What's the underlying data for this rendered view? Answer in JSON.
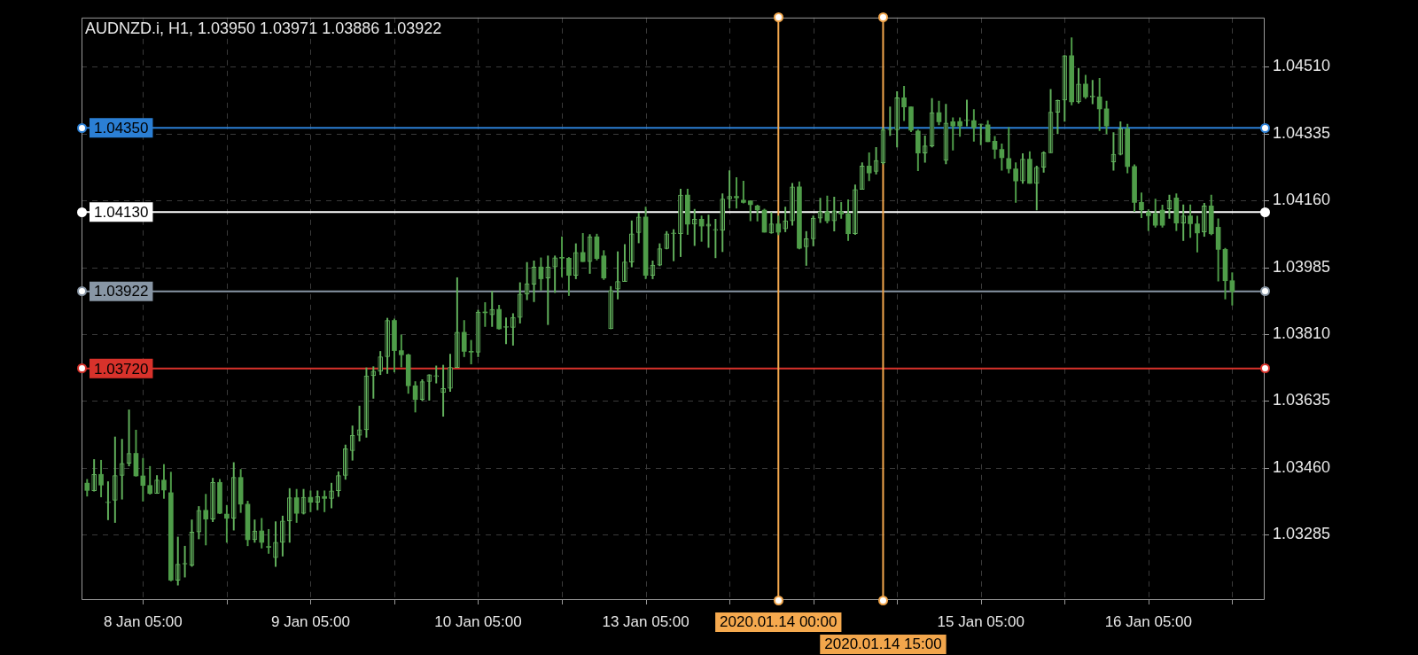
{
  "chart_data": {
    "type": "candlestick",
    "title": "AUDNZD.i, H1, 1.03950 1.03971 1.03886 1.03922",
    "categories": [
      null,
      null,
      null,
      null,
      null,
      null,
      null,
      null,
      "8 Jan 05:00",
      null,
      null,
      null,
      null,
      null,
      null,
      null,
      null,
      null,
      null,
      null,
      null,
      null,
      null,
      null,
      null,
      null,
      null,
      null,
      null,
      null,
      null,
      null,
      "9 Jan 05:00",
      null,
      null,
      null,
      null,
      null,
      null,
      null,
      null,
      null,
      null,
      null,
      null,
      null,
      null,
      null,
      null,
      null,
      null,
      null,
      null,
      null,
      null,
      null,
      "10 Jan 05:00",
      null,
      null,
      null,
      null,
      null,
      null,
      null,
      null,
      null,
      null,
      null,
      null,
      null,
      null,
      null,
      null,
      null,
      null,
      null,
      null,
      null,
      null,
      null,
      "13 Jan 05:00",
      null,
      null,
      null,
      null,
      null,
      null,
      null,
      null,
      null,
      null,
      null,
      null,
      null,
      null,
      null,
      null,
      null,
      null,
      "2020.01.14 00:00",
      null,
      null,
      null,
      null,
      null,
      null,
      null,
      null,
      null,
      null,
      null,
      null,
      null,
      null,
      "2020.01.14 15:00",
      null,
      null,
      null,
      null,
      null,
      null,
      null,
      null,
      null,
      null,
      null,
      null,
      null,
      "15 Jan 05:00",
      null,
      null,
      null,
      null,
      null,
      null,
      null,
      null,
      null,
      null,
      null,
      null,
      null,
      null,
      null,
      null,
      null,
      null,
      null,
      null,
      null,
      null,
      null,
      "16 Jan 05:00",
      null,
      null,
      null,
      null,
      null,
      null,
      null,
      null,
      null,
      null,
      null,
      null
    ],
    "ohlc": [
      [
        1.0342,
        1.0343,
        1.03386,
        1.03401
      ],
      [
        1.034,
        1.03482,
        1.03399,
        1.03443
      ],
      [
        1.03443,
        1.0348,
        1.03384,
        1.03415
      ],
      [
        1.03369,
        1.03424,
        1.03324,
        1.03369
      ],
      [
        1.03375,
        1.03541,
        1.03317,
        1.0344
      ],
      [
        1.0344,
        1.03535,
        1.03378,
        1.03472
      ],
      [
        1.03472,
        1.03612,
        1.03465,
        1.03498
      ],
      [
        1.03498,
        1.03559,
        1.03438,
        1.03439
      ],
      [
        1.03439,
        1.03485,
        1.03373,
        1.03414
      ],
      [
        1.03414,
        1.03464,
        1.03391,
        1.03393
      ],
      [
        1.03393,
        1.0344,
        1.03393,
        1.03428
      ],
      [
        1.03428,
        1.03469,
        1.0338,
        1.03402
      ],
      [
        1.03395,
        1.03449,
        1.03164,
        1.03166
      ],
      [
        1.03166,
        1.03279,
        1.03153,
        1.03208
      ],
      [
        1.03208,
        1.03255,
        1.03174,
        1.03208
      ],
      [
        1.03205,
        1.03324,
        1.03202,
        1.03292
      ],
      [
        1.03292,
        1.03359,
        1.03274,
        1.03349
      ],
      [
        1.03349,
        1.03391,
        1.03258,
        1.03326
      ],
      [
        1.03326,
        1.03433,
        1.03319,
        1.03422
      ],
      [
        1.03422,
        1.0343,
        1.0334,
        1.03341
      ],
      [
        1.03339,
        1.03362,
        1.03265,
        1.03328
      ],
      [
        1.03328,
        1.03474,
        1.03297,
        1.03435
      ],
      [
        1.03435,
        1.03456,
        1.03343,
        1.03365
      ],
      [
        1.03365,
        1.03373,
        1.03256,
        1.03272
      ],
      [
        1.03272,
        1.03324,
        1.03265,
        1.03295
      ],
      [
        1.03295,
        1.03328,
        1.0325,
        1.03265
      ],
      [
        1.03254,
        1.03299,
        1.03236,
        1.03252
      ],
      [
        1.03225,
        1.03319,
        1.03202,
        1.03265
      ],
      [
        1.03265,
        1.03334,
        1.03229,
        1.03321
      ],
      [
        1.03321,
        1.03406,
        1.03265,
        1.03382
      ],
      [
        1.03382,
        1.03404,
        1.03317,
        1.03341
      ],
      [
        1.03341,
        1.03404,
        1.03339,
        1.03383
      ],
      [
        1.03383,
        1.034,
        1.03345,
        1.0337
      ],
      [
        1.0337,
        1.034,
        1.0335,
        1.03385
      ],
      [
        1.03385,
        1.034,
        1.03345,
        1.0338
      ],
      [
        1.0338,
        1.0342,
        1.03355,
        1.034
      ],
      [
        1.034,
        1.0345,
        1.03385,
        1.0344
      ],
      [
        1.0344,
        1.0352,
        1.0343,
        1.0351
      ],
      [
        1.03505,
        1.0357,
        1.0348,
        1.03545
      ],
      [
        1.03545,
        1.03622,
        1.0353,
        1.0356
      ],
      [
        1.0356,
        1.03722,
        1.0354,
        1.03701
      ],
      [
        1.03701,
        1.03725,
        1.03642,
        1.03713
      ],
      [
        1.03713,
        1.03765,
        1.03704,
        1.03751
      ],
      [
        1.03751,
        1.03852,
        1.03707,
        1.03846
      ],
      [
        1.03846,
        1.0385,
        1.03711,
        1.03767
      ],
      [
        1.03767,
        1.03808,
        1.03724,
        1.03756
      ],
      [
        1.03756,
        1.03758,
        1.03655,
        1.03675
      ],
      [
        1.03675,
        1.03686,
        1.03606,
        1.03639
      ],
      [
        1.03639,
        1.03691,
        1.03636,
        1.03686
      ],
      [
        1.03686,
        1.03704,
        1.03637,
        1.03704
      ],
      [
        1.03699,
        1.03727,
        1.03682,
        1.037
      ],
      [
        1.03657,
        1.03729,
        1.03595,
        1.03668
      ],
      [
        1.03668,
        1.03758,
        1.0366,
        1.03723
      ],
      [
        1.03723,
        1.03958,
        1.03723,
        1.03815
      ],
      [
        1.03815,
        1.03846,
        1.03751,
        1.03765
      ],
      [
        1.03765,
        1.03794,
        1.03732,
        1.03763
      ],
      [
        1.03763,
        1.03873,
        1.03751,
        1.03868
      ],
      [
        1.03868,
        1.03893,
        1.0383,
        1.03866
      ],
      [
        1.03861,
        1.03922,
        1.0383,
        1.03875
      ],
      [
        1.03875,
        1.03886,
        1.03823,
        1.03824
      ],
      [
        1.03828,
        1.03853,
        1.03785,
        1.03828
      ],
      [
        1.03828,
        1.03864,
        1.03781,
        1.03854
      ],
      [
        1.03854,
        1.03945,
        1.03839,
        1.03915
      ],
      [
        1.03915,
        1.03998,
        1.039,
        1.03942
      ],
      [
        1.03941,
        1.04002,
        1.03895,
        1.03986
      ],
      [
        1.03986,
        1.0401,
        1.03925,
        1.03955
      ],
      [
        1.03957,
        1.04015,
        1.03835,
        1.03986
      ],
      [
        1.03986,
        1.04015,
        1.03919,
        1.0401
      ],
      [
        1.0401,
        1.04065,
        1.0396,
        1.04009
      ],
      [
        1.04009,
        1.04011,
        1.03911,
        1.03964
      ],
      [
        1.03964,
        1.04047,
        1.03955,
        1.04024
      ],
      [
        1.04024,
        1.04074,
        1.04,
        1.04
      ],
      [
        1.04,
        1.04071,
        1.03969,
        1.04065
      ],
      [
        1.04065,
        1.04072,
        1.04004,
        1.04008
      ],
      [
        1.04015,
        1.04029,
        1.03953,
        1.03957
      ],
      [
        1.03824,
        1.03935,
        1.03824,
        1.03924
      ],
      [
        1.03928,
        1.04026,
        1.03902,
        1.03948
      ],
      [
        1.03948,
        1.04045,
        1.03948,
        1.03999
      ],
      [
        1.03999,
        1.04107,
        1.03986,
        1.04073
      ],
      [
        1.04076,
        1.04127,
        1.04049,
        1.04117
      ],
      [
        1.04117,
        1.04143,
        1.03955,
        1.03964
      ],
      [
        1.03964,
        1.04002,
        1.03955,
        1.03991
      ],
      [
        1.03991,
        1.04047,
        1.03989,
        1.04034
      ],
      [
        1.04034,
        1.04079,
        1.04033,
        1.04073
      ],
      [
        1.04073,
        1.04084,
        1.04002,
        1.04073
      ],
      [
        1.04073,
        1.0419,
        1.04013,
        1.04174
      ],
      [
        1.04174,
        1.0419,
        1.04071,
        1.04098
      ],
      [
        1.04098,
        1.04137,
        1.04042,
        1.04111
      ],
      [
        1.04111,
        1.0412,
        1.04053,
        1.04093
      ],
      [
        1.04093,
        1.04122,
        1.04037,
        1.04098
      ],
      [
        1.04082,
        1.04111,
        1.0401,
        1.04082
      ],
      [
        1.04082,
        1.04178,
        1.04026,
        1.04164
      ],
      [
        1.04164,
        1.04238,
        1.0414,
        1.04171
      ],
      [
        1.04171,
        1.0422,
        1.0414,
        1.04167
      ],
      [
        1.04161,
        1.04211,
        1.04153,
        1.04155
      ],
      [
        1.04159,
        1.0416,
        1.04107,
        1.04149
      ],
      [
        1.04146,
        1.04148,
        1.04106,
        1.04135
      ],
      [
        1.04135,
        1.04138,
        1.04077,
        1.04077
      ],
      [
        1.04075,
        1.04129,
        1.04074,
        1.04099
      ],
      [
        1.04099,
        1.0412,
        1.0407,
        1.04077
      ],
      [
        1.04086,
        1.04143,
        1.04078,
        1.04107
      ],
      [
        1.04107,
        1.04205,
        1.04095,
        1.04196
      ],
      [
        1.04196,
        1.04209,
        1.04033,
        1.04035
      ],
      [
        1.04039,
        1.04079,
        1.0399,
        1.0406
      ],
      [
        1.0406,
        1.0412,
        1.04041,
        1.04114
      ],
      [
        1.04114,
        1.04166,
        1.04102,
        1.04131
      ],
      [
        1.04131,
        1.04172,
        1.04101,
        1.04107
      ],
      [
        1.04107,
        1.04169,
        1.0408,
        1.04133
      ],
      [
        1.04131,
        1.04155,
        1.04113,
        1.04125
      ],
      [
        1.04125,
        1.04162,
        1.04055,
        1.04073
      ],
      [
        1.04073,
        1.04201,
        1.04071,
        1.04189
      ],
      [
        1.04189,
        1.04259,
        1.04189,
        1.0425
      ],
      [
        1.0425,
        1.04285,
        1.04212,
        1.04232
      ],
      [
        1.04236,
        1.04299,
        1.04229,
        1.04265
      ],
      [
        1.04259,
        1.0435,
        1.04255,
        1.04345
      ],
      [
        1.04345,
        1.04405,
        1.0433,
        1.04345
      ],
      [
        1.04345,
        1.04445,
        1.043,
        1.04429
      ],
      [
        1.04429,
        1.04459,
        1.04369,
        1.04405
      ],
      [
        1.04405,
        1.04405,
        1.0434,
        1.04344
      ],
      [
        1.04342,
        1.04345,
        1.04238,
        1.04284
      ],
      [
        1.04284,
        1.04329,
        1.0426,
        1.04303
      ],
      [
        1.04303,
        1.04427,
        1.043,
        1.0439
      ],
      [
        1.0439,
        1.0442,
        1.04358,
        1.04366
      ],
      [
        1.04265,
        1.04412,
        1.04256,
        1.04363
      ],
      [
        1.04366,
        1.04377,
        1.04292,
        1.04355
      ],
      [
        1.04367,
        1.04377,
        1.04328,
        1.04355
      ],
      [
        1.04369,
        1.04423,
        1.04355,
        1.04369
      ],
      [
        1.04369,
        1.04398,
        1.04315,
        1.04351
      ],
      [
        1.04358,
        1.0436,
        1.04306,
        1.04358
      ],
      [
        1.04358,
        1.04369,
        1.04314,
        1.04314
      ],
      [
        1.04315,
        1.04328,
        1.0427,
        1.04294
      ],
      [
        1.04294,
        1.04308,
        1.04239,
        1.04272
      ],
      [
        1.0427,
        1.04351,
        1.04232,
        1.04243
      ],
      [
        1.04243,
        1.04259,
        1.04155,
        1.04211
      ],
      [
        1.04211,
        1.04283,
        1.04205,
        1.04268
      ],
      [
        1.04268,
        1.04288,
        1.04205,
        1.04205
      ],
      [
        1.04205,
        1.0425,
        1.04135,
        1.04247
      ],
      [
        1.04247,
        1.04288,
        1.04234,
        1.04285
      ],
      [
        1.04285,
        1.04451,
        1.04285,
        1.04391
      ],
      [
        1.04391,
        1.04423,
        1.04335,
        1.04422
      ],
      [
        1.04423,
        1.0454,
        1.04367,
        1.04539
      ],
      [
        1.04539,
        1.04586,
        1.0441,
        1.04418
      ],
      [
        1.04418,
        1.04506,
        1.04415,
        1.04465
      ],
      [
        1.04465,
        1.04488,
        1.04427,
        1.04431
      ],
      [
        1.04431,
        1.04475,
        1.04413,
        1.04431
      ],
      [
        1.04431,
        1.0448,
        1.04343,
        1.044
      ],
      [
        1.044,
        1.0442,
        1.04335,
        1.04355
      ],
      [
        1.04261,
        1.04338,
        1.04239,
        1.04281
      ],
      [
        1.04281,
        1.04366,
        1.04279,
        1.04348
      ],
      [
        1.04348,
        1.0436,
        1.04232,
        1.04249
      ],
      [
        1.04249,
        1.04254,
        1.04131,
        1.04155
      ],
      [
        1.04155,
        1.0418,
        1.04115,
        1.04135
      ],
      [
        1.04129,
        1.04136,
        1.04081,
        1.0412
      ],
      [
        1.04126,
        1.04164,
        1.0409,
        1.04095
      ],
      [
        1.04135,
        1.04148,
        1.0409,
        1.04095
      ],
      [
        1.04138,
        1.04174,
        1.04113,
        1.0416
      ],
      [
        1.04167,
        1.04178,
        1.04081,
        1.04101
      ],
      [
        1.04101,
        1.04149,
        1.04055,
        1.0412
      ],
      [
        1.0412,
        1.04149,
        1.04063,
        1.04099
      ],
      [
        1.04099,
        1.04119,
        1.04025,
        1.04075
      ],
      [
        1.04078,
        1.04153,
        1.04066,
        1.04146
      ],
      [
        1.04146,
        1.04174,
        1.0407,
        1.04073
      ],
      [
        1.0409,
        1.04112,
        1.03949,
        1.04032
      ],
      [
        1.04032,
        1.04035,
        1.03902,
        1.0395
      ],
      [
        1.0395,
        1.03971,
        1.03886,
        1.03922
      ]
    ],
    "colors": [
      "#4f9d49",
      "#62b15c",
      "#4f9d49",
      "#62b15c",
      "#62b15c",
      "#62b15c",
      "#62b15c",
      "#4f9d49",
      "#4f9d49",
      "#4f9d49",
      "#62b15c",
      "#4f9d49",
      "#4f9d49",
      "#62b15c",
      "#62b15c",
      "#62b15c",
      "#62b15c",
      "#4f9d49",
      "#62b15c",
      "#4f9d49",
      "#4f9d49",
      "#62b15c",
      "#4f9d49",
      "#4f9d49",
      "#62b15c",
      "#4f9d49",
      "#4f9d49",
      "#62b15c",
      "#62b15c",
      "#62b15c",
      "#4f9d49",
      "#62b15c",
      "#4f9d49",
      "#62b15c",
      "#4f9d49",
      "#62b15c",
      "#62b15c",
      "#62b15c",
      "#62b15c",
      "#62b15c",
      "#62b15c",
      "#62b15c",
      "#62b15c",
      "#62b15c",
      "#4f9d49",
      "#4f9d49",
      "#4f9d49",
      "#4f9d49",
      "#62b15c",
      "#62b15c",
      "#62b15c",
      "#62b15c",
      "#62b15c",
      "#62b15c",
      "#4f9d49",
      "#4f9d49",
      "#62b15c",
      "#4f9d49",
      "#62b15c",
      "#4f9d49",
      "#62b15c",
      "#62b15c",
      "#62b15c",
      "#62b15c",
      "#62b15c",
      "#4f9d49",
      "#62b15c",
      "#62b15c",
      "#4f9d49",
      "#4f9d49",
      "#62b15c",
      "#4f9d49",
      "#62b15c",
      "#4f9d49",
      "#4f9d49",
      "#62b15c",
      "#62b15c",
      "#62b15c",
      "#62b15c",
      "#62b15c",
      "#4f9d49",
      "#62b15c",
      "#62b15c",
      "#62b15c",
      "#62b15c",
      "#62b15c",
      "#4f9d49",
      "#62b15c",
      "#4f9d49",
      "#62b15c",
      "#62b15c",
      "#62b15c",
      "#62b15c",
      "#4f9d49",
      "#4f9d49",
      "#4f9d49",
      "#4f9d49",
      "#4f9d49",
      "#62b15c",
      "#4f9d49",
      "#62b15c",
      "#62b15c",
      "#4f9d49",
      "#62b15c",
      "#62b15c",
      "#62b15c",
      "#4f9d49",
      "#62b15c",
      "#4f9d49",
      "#4f9d49",
      "#62b15c",
      "#62b15c",
      "#4f9d49",
      "#62b15c",
      "#62b15c",
      "#62b15c",
      "#62b15c",
      "#4f9d49",
      "#4f9d49",
      "#4f9d49",
      "#62b15c",
      "#62b15c",
      "#4f9d49",
      "#62b15c",
      "#4f9d49",
      "#4f9d49",
      "#62b15c",
      "#4f9d49",
      "#62b15c",
      "#4f9d49",
      "#4f9d49",
      "#4f9d49",
      "#4f9d49",
      "#4f9d49",
      "#62b15c",
      "#4f9d49",
      "#62b15c",
      "#62b15c",
      "#62b15c",
      "#62b15c",
      "#62b15c",
      "#4f9d49",
      "#62b15c",
      "#4f9d49",
      "#62b15c",
      "#4f9d49",
      "#4f9d49",
      "#62b15c",
      "#62b15c",
      "#4f9d49",
      "#4f9d49",
      "#4f9d49",
      "#4f9d49",
      "#4f9d49",
      "#4f9d49",
      "#62b15c",
      "#4f9d49",
      "#62b15c",
      "#4f9d49",
      "#4f9d49",
      "#62b15c",
      "#4f9d49",
      "#4f9d49",
      "#4f9d49",
      "#4f9d49"
    ],
    "ylim": [
      1.03114,
      1.04639
    ],
    "yticks": [
      {
        "value": 1.03285,
        "label": "1.03285"
      },
      {
        "value": 1.0346,
        "label": "1.03460"
      },
      {
        "value": 1.03635,
        "label": "1.03635"
      },
      {
        "value": 1.0381,
        "label": "1.03810"
      },
      {
        "value": 1.03985,
        "label": "1.03985"
      },
      {
        "value": 1.0416,
        "label": "1.04160"
      },
      {
        "value": 1.04335,
        "label": "1.04335"
      },
      {
        "value": 1.0451,
        "label": "1.04510"
      }
    ],
    "grid": true,
    "ref_lines": [
      {
        "axis": "y",
        "value": 1.0435,
        "label": "1.04350",
        "color": "#2b7fd4"
      },
      {
        "axis": "y",
        "value": 1.0413,
        "label": "1.04130",
        "color": "#ffffff"
      },
      {
        "axis": "y",
        "value": 1.03922,
        "label": "1.03922",
        "color": "#8896a5"
      },
      {
        "axis": "y",
        "value": 1.0372,
        "label": "1.03720",
        "color": "#d8322b"
      },
      {
        "axis": "x",
        "value": "2020.01.14 00:00",
        "color": "#f5a94e"
      },
      {
        "axis": "x",
        "value": "2020.01.14 15:00",
        "color": "#f2a64c"
      }
    ]
  }
}
